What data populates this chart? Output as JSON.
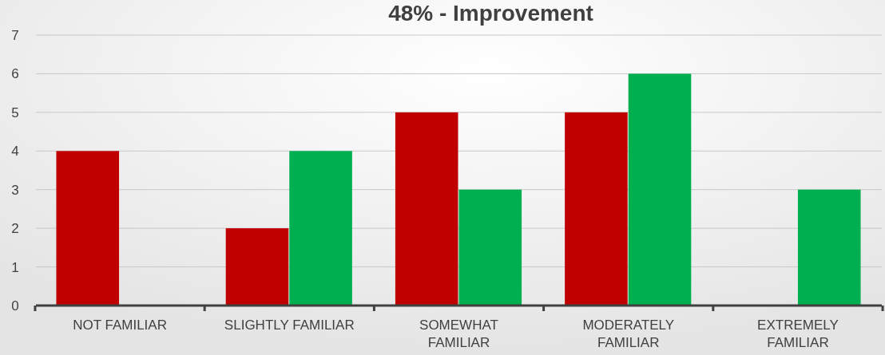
{
  "chart_data": {
    "type": "bar",
    "title": "48% - Improvement",
    "categories": [
      "NOT FAMILIAR",
      "SLIGHTLY FAMILIAR",
      "SOMEWHAT FAMILIAR",
      "MODERATELY FAMILIAR",
      "EXTREMELY FAMILIAR"
    ],
    "series": [
      {
        "color": "#c00000",
        "values": [
          4,
          2,
          5,
          5,
          0
        ]
      },
      {
        "color": "#00b050",
        "values": [
          0,
          4,
          3,
          6,
          3
        ]
      }
    ],
    "ylim": [
      0,
      7
    ],
    "yticks": [
      0,
      1,
      2,
      3,
      4,
      5,
      6,
      7
    ],
    "grid": "y"
  }
}
